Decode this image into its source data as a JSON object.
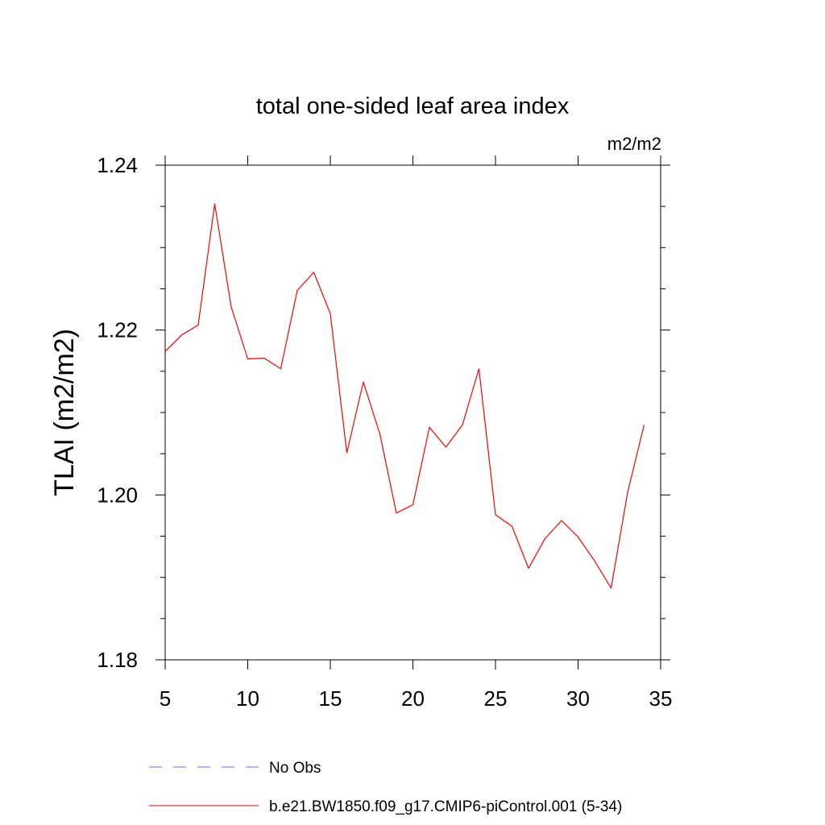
{
  "chart_data": {
    "type": "line",
    "title": "total one-sided leaf area index",
    "units_label": "m2/m2",
    "ylabel": "TLAI  (m2/m2)",
    "xlabel": "",
    "xlim": [
      5,
      35
    ],
    "ylim": [
      1.18,
      1.24
    ],
    "xticks": [
      5,
      10,
      15,
      20,
      25,
      30,
      35
    ],
    "xtick_labels": [
      "5",
      "10",
      "15",
      "20",
      "25",
      "30",
      "35"
    ],
    "yticks": [
      1.18,
      1.2,
      1.22,
      1.24
    ],
    "ytick_labels": [
      "1.18",
      "1.20",
      "1.22",
      "1.24"
    ],
    "grid": false,
    "legend_position": "bottom",
    "series": [
      {
        "name": "b.e21.BW1850.f09_g17.CMIP6-piControl.001 (5-34)",
        "color": "#ff0000",
        "style": "solid",
        "x": [
          5,
          6,
          7,
          8,
          9,
          10,
          11,
          12,
          13,
          14,
          15,
          16,
          17,
          18,
          19,
          20,
          21,
          22,
          23,
          24,
          25,
          26,
          27,
          28,
          29,
          30,
          31,
          32,
          33,
          34
        ],
        "y": [
          1.2174,
          1.2194,
          1.2206,
          1.2353,
          1.2228,
          1.2165,
          1.2166,
          1.2153,
          1.2248,
          1.227,
          1.222,
          1.2051,
          1.2137,
          1.2074,
          1.1978,
          1.1988,
          1.2082,
          1.2058,
          1.2085,
          1.2153,
          1.1976,
          1.1962,
          1.1911,
          1.1947,
          1.1969,
          1.1949,
          1.192,
          1.1887,
          1.2003,
          1.2085
        ]
      },
      {
        "name": "No Obs",
        "color": "#6666ff",
        "style": "dashed",
        "x": [],
        "y": []
      }
    ]
  }
}
